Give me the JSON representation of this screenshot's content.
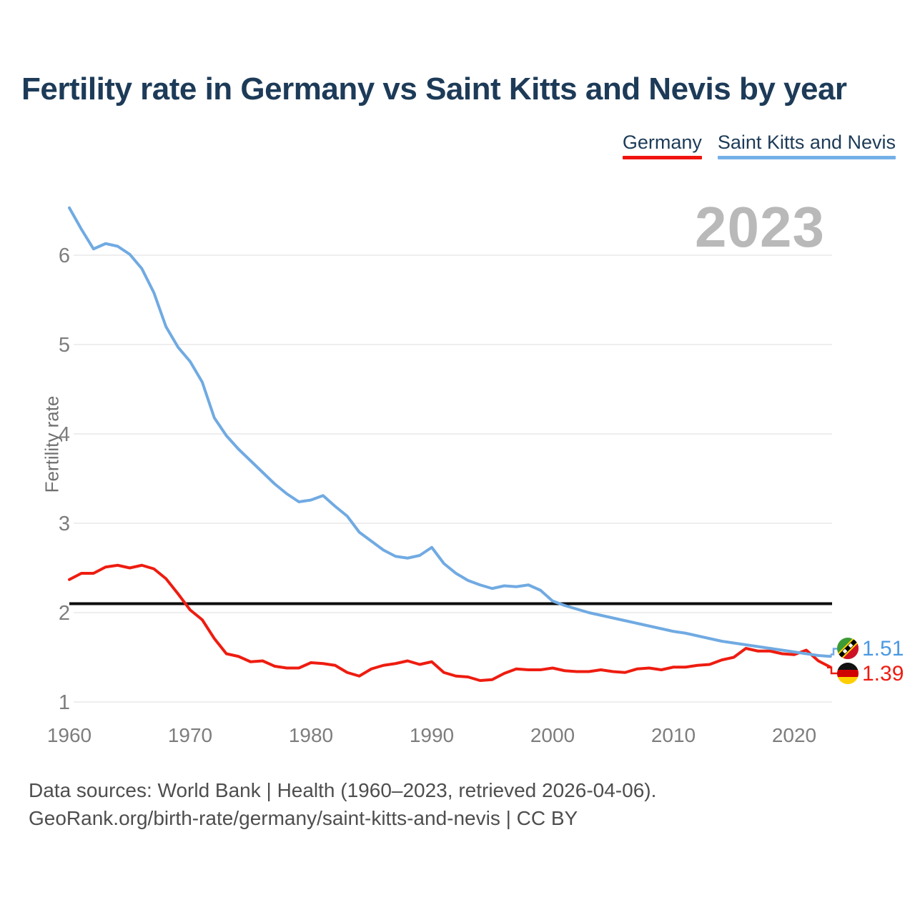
{
  "title": "Fertility rate in Germany vs Saint Kitts and Nevis by year",
  "watermark_year": "2023",
  "legend": [
    {
      "label": "Germany",
      "color": "#f0140e"
    },
    {
      "label": "Saint Kitts and Nevis",
      "color": "#74b0e8"
    }
  ],
  "end_labels": [
    {
      "series": "Saint Kitts and Nevis",
      "value": "1.51",
      "color": "#4b99e2",
      "flag": "saint-kitts-and-nevis-flag"
    },
    {
      "series": "Germany",
      "value": "1.39",
      "color": "#ee1c10",
      "flag": "germany-flag"
    }
  ],
  "footer": {
    "line1": "Data sources: World Bank | Health (1960–2023, retrieved 2026-04-06).",
    "line2": "GeoRank.org/birth-rate/germany/saint-kitts-and-nevis | CC BY"
  },
  "chart_data": {
    "type": "line",
    "title": "Fertility rate in Germany vs Saint Kitts and Nevis by year",
    "xlabel": "",
    "ylabel": "Fertility rate",
    "grid": true,
    "legend_position": "top-right",
    "ylim": [
      0.85,
      6.65
    ],
    "xlim": [
      1960,
      2023
    ],
    "yticks": [
      1,
      2,
      3,
      4,
      5,
      6
    ],
    "xticks": [
      1960,
      1970,
      1980,
      1990,
      2000,
      2010,
      2020
    ],
    "replacement_level_line": {
      "value": 2.1,
      "color": "#0d0d0d"
    },
    "x": [
      1960,
      1961,
      1962,
      1963,
      1964,
      1965,
      1966,
      1967,
      1968,
      1969,
      1970,
      1971,
      1972,
      1973,
      1974,
      1975,
      1976,
      1977,
      1978,
      1979,
      1980,
      1981,
      1982,
      1983,
      1984,
      1985,
      1986,
      1987,
      1988,
      1989,
      1990,
      1991,
      1992,
      1993,
      1994,
      1995,
      1996,
      1997,
      1998,
      1999,
      2000,
      2001,
      2002,
      2003,
      2004,
      2005,
      2006,
      2007,
      2008,
      2009,
      2010,
      2011,
      2012,
      2013,
      2014,
      2015,
      2016,
      2017,
      2018,
      2019,
      2020,
      2021,
      2022,
      2023
    ],
    "series": [
      {
        "name": "Germany",
        "color": "#ee1c10",
        "end_value": 1.39,
        "values": [
          2.37,
          2.44,
          2.44,
          2.51,
          2.53,
          2.5,
          2.53,
          2.49,
          2.38,
          2.21,
          2.03,
          1.92,
          1.71,
          1.54,
          1.51,
          1.45,
          1.46,
          1.4,
          1.38,
          1.38,
          1.44,
          1.43,
          1.41,
          1.33,
          1.29,
          1.37,
          1.41,
          1.43,
          1.46,
          1.42,
          1.45,
          1.33,
          1.29,
          1.28,
          1.24,
          1.25,
          1.32,
          1.37,
          1.36,
          1.36,
          1.38,
          1.35,
          1.34,
          1.34,
          1.36,
          1.34,
          1.33,
          1.37,
          1.38,
          1.36,
          1.39,
          1.39,
          1.41,
          1.42,
          1.47,
          1.5,
          1.6,
          1.57,
          1.57,
          1.54,
          1.53,
          1.58,
          1.46,
          1.39
        ]
      },
      {
        "name": "Saint Kitts and Nevis",
        "color": "#70aae2",
        "end_value": 1.51,
        "values": [
          6.53,
          6.29,
          6.07,
          6.13,
          6.1,
          6.01,
          5.85,
          5.58,
          5.2,
          4.97,
          4.81,
          4.58,
          4.18,
          3.98,
          3.83,
          3.7,
          3.57,
          3.44,
          3.33,
          3.24,
          3.26,
          3.31,
          3.19,
          3.08,
          2.9,
          2.8,
          2.7,
          2.63,
          2.61,
          2.64,
          2.73,
          2.55,
          2.44,
          2.36,
          2.31,
          2.27,
          2.3,
          2.29,
          2.31,
          2.25,
          2.13,
          2.08,
          2.04,
          2.0,
          1.97,
          1.94,
          1.91,
          1.88,
          1.85,
          1.82,
          1.79,
          1.77,
          1.74,
          1.71,
          1.68,
          1.66,
          1.64,
          1.62,
          1.6,
          1.58,
          1.56,
          1.54,
          1.52,
          1.51
        ]
      }
    ]
  }
}
